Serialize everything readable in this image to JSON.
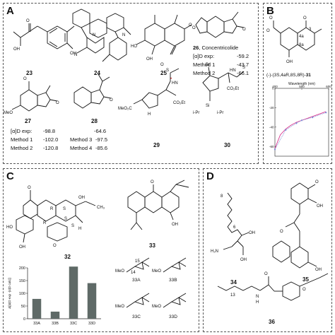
{
  "panels": {
    "a": {
      "letter": "A"
    },
    "b": {
      "letter": "B"
    },
    "c": {
      "letter": "C"
    },
    "d": {
      "letter": "D"
    }
  },
  "panel_a": {
    "compounds": [
      "23",
      "24",
      "25",
      "26",
      "27",
      "28",
      "29",
      "30"
    ],
    "c26_label": ", Concentricolide",
    "c26_rot": {
      "label": "[α]D exp:",
      "value": "-59.2"
    },
    "c26_methods": [
      {
        "label": "Method 1",
        "value": "-43.7"
      },
      {
        "label": "Method 2",
        "value": "-66.1"
      }
    ],
    "c27_rot": {
      "label": "[α]D exp:",
      "value": "-98.8"
    },
    "c28_rot": "-64.6",
    "methods_12": [
      {
        "label": "Method 1",
        "value": "-102.0"
      },
      {
        "label": "Method 2",
        "value": "-120.8"
      }
    ],
    "methods_34": [
      {
        "label": "Method 3",
        "value": "-97.5"
      },
      {
        "label": "Method 4",
        "value": "-85.6"
      }
    ],
    "atoms": {
      "me": "Me",
      "meo": "MeO",
      "oh": "OH",
      "ho": "HO",
      "br": "Br",
      "s": "S",
      "n": "N",
      "nh": "NH",
      "hn": "HN",
      "o": "O",
      "si": "Si",
      "ipr": "i-Pr",
      "co2me": "MeO₂C",
      "co2et": "CO₂Et",
      "h": "H",
      "dot": "•"
    }
  },
  "panel_b": {
    "compound_prefix": "(-)-(3S,4aR,8S,8R)-",
    "compound_num": "31",
    "ring_labels": [
      "4a",
      "3",
      "8a"
    ],
    "chart_data": {
      "type": "line",
      "title": "Wavelength (nm)",
      "xlabel": "Wavelength (nm)",
      "ylabel": "",
      "xlim": [
        400,
        600
      ],
      "ylim": [
        -70,
        0
      ],
      "x_ticks": [
        "400",
        "500",
        "600"
      ],
      "y_ticks": [
        "0",
        "-20",
        "-40",
        "-60"
      ],
      "series": [
        {
          "x": [
            400,
            420,
            440,
            460,
            480,
            500,
            520,
            540,
            560,
            580,
            590
          ],
          "y": [
            -62,
            -48,
            -42,
            -38,
            -35,
            -33,
            -31,
            -29,
            -27,
            -25,
            -24
          ]
        },
        {
          "x": [
            400,
            440,
            480,
            500,
            540,
            590
          ],
          "y": [
            -63,
            -43,
            -36,
            -33,
            -30,
            -25
          ]
        }
      ]
    }
  },
  "panel_c": {
    "compounds": [
      "32",
      "33"
    ],
    "stereo_labels": [
      "R",
      "S",
      "S",
      "R",
      "S"
    ],
    "sub_compounds": [
      "33A",
      "33B",
      "33C",
      "33D"
    ],
    "sub_labels": {
      "meo": "MeO",
      "n15": "15",
      "n14": "14"
    },
    "atoms": {
      "h": "H",
      "ch3": "CH₃",
      "oh": "OH",
      "ho": "HO",
      "o": "O"
    },
    "chart_data": {
      "type": "bar",
      "categories": [
        "33A",
        "33B",
        "33C",
        "33D"
      ],
      "values": [
        78,
        28,
        205,
        140
      ],
      "ylabel": "Δ[|α|D exp -|α|D calc|]",
      "ylim": [
        0,
        200
      ],
      "y_ticks": [
        "0",
        "50",
        "100",
        "150",
        "200"
      ],
      "bar_color": "#5f6a67"
    }
  },
  "panel_d": {
    "compounds": [
      "34",
      "35",
      "36"
    ],
    "subscripts": {
      "c34": "8",
      "c34b": "6",
      "c36": "13"
    },
    "atoms": {
      "h2n": "H₂N",
      "oh": "OH",
      "o": "O",
      "n": "N",
      "h": "H",
      "ome": "O"
    }
  }
}
